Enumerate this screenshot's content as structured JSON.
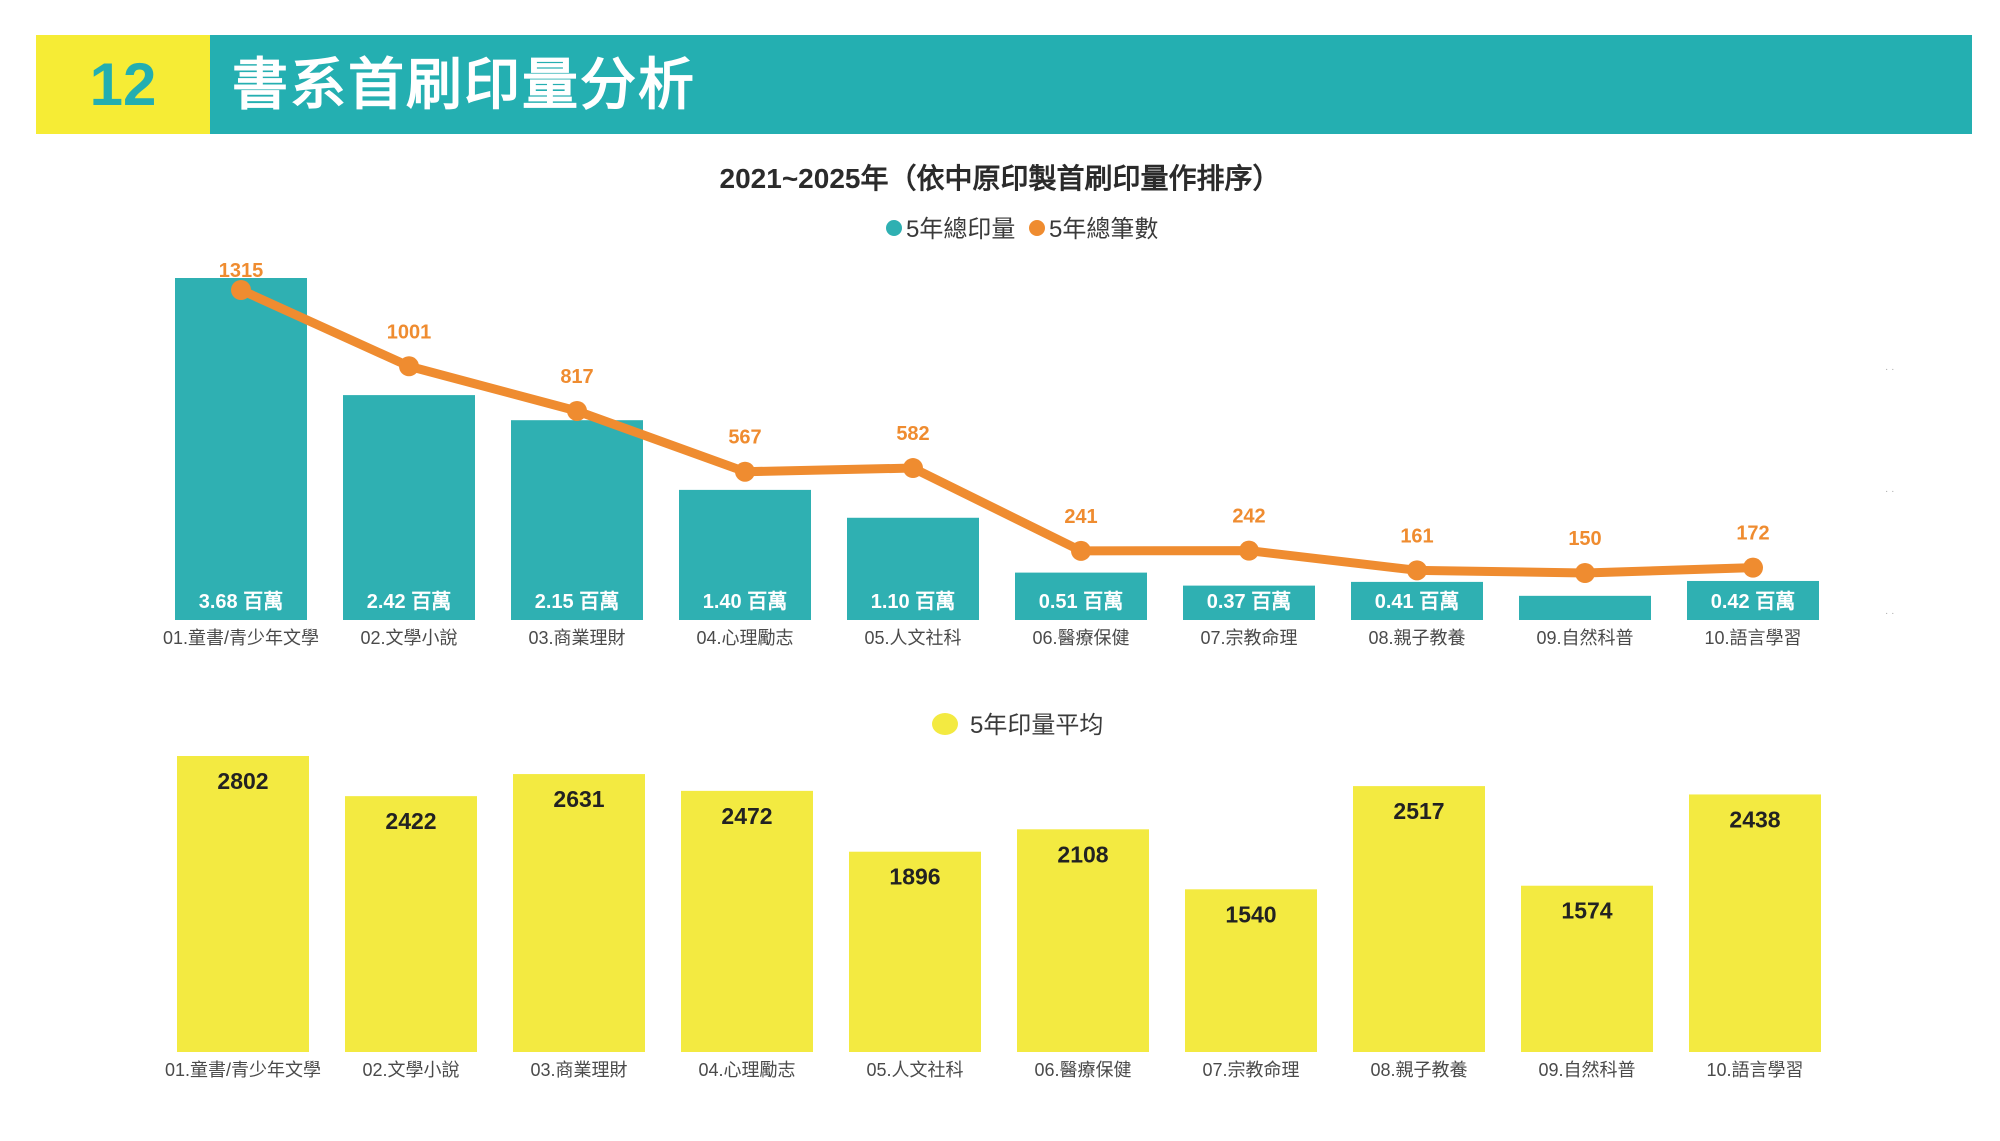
{
  "header": {
    "section_number": "12",
    "title": "書系首刷印量分析"
  },
  "colors": {
    "teal": "#2fb0b2",
    "orange": "#ef8c30",
    "yellow": "#f3ea41",
    "header_teal": "#24afb1",
    "header_yellow": "#f6ec35"
  },
  "chart_data": [
    {
      "type": "bar+line",
      "title": "2021~2025年（依中原印製首刷印量作排序）",
      "legend_position": "top-center",
      "categories": [
        "01.童書/青少年文學",
        "02.文學小說",
        "03.商業理財",
        "04.心理勵志",
        "05.人文社科",
        "06.醫療保健",
        "07.宗教命理",
        "08.親子教養",
        "09.自然科普",
        "10.語言學習"
      ],
      "series": [
        {
          "name": "5年總印量",
          "type": "bar",
          "unit": "百萬",
          "values": [
            3.68,
            2.42,
            2.15,
            1.4,
            1.1,
            0.51,
            0.37,
            0.41,
            0.26,
            0.42
          ],
          "labels": [
            "3.68 百萬",
            "2.42 百萬",
            "2.15 百萬",
            "1.40 百萬",
            "1.10 百萬",
            "0.51 百萬",
            "0.37 百萬",
            "0.41 百萬",
            "",
            "0.42 百萬"
          ]
        },
        {
          "name": "5年總筆數",
          "type": "line",
          "values": [
            1315,
            1001,
            817,
            567,
            582,
            241,
            242,
            161,
            150,
            172
          ],
          "labels": [
            "1315",
            "1001",
            "817",
            "567",
            "582",
            "241",
            "242",
            "161",
            "150",
            "172"
          ]
        }
      ],
      "ylim_bar": [
        0,
        3.68
      ],
      "ylim_line": [
        0,
        1400
      ],
      "grid": false
    },
    {
      "type": "bar",
      "title": "",
      "legend_position": "top-center",
      "categories": [
        "01.童書/青少年文學",
        "02.文學小說",
        "03.商業理財",
        "04.心理勵志",
        "05.人文社科",
        "06.醫療保健",
        "07.宗教命理",
        "08.親子教養",
        "09.自然科普",
        "10.語言學習"
      ],
      "series": [
        {
          "name": "5年印量平均",
          "type": "bar",
          "values": [
            2802,
            2422,
            2631,
            2472,
            1896,
            2108,
            1540,
            2517,
            1574,
            2438
          ],
          "labels": [
            "2802",
            "2422",
            "2631",
            "2472",
            "1896",
            "2108",
            "1540",
            "2517",
            "1574",
            "2438"
          ]
        }
      ],
      "ylim": [
        0,
        2802
      ],
      "grid": false
    }
  ]
}
